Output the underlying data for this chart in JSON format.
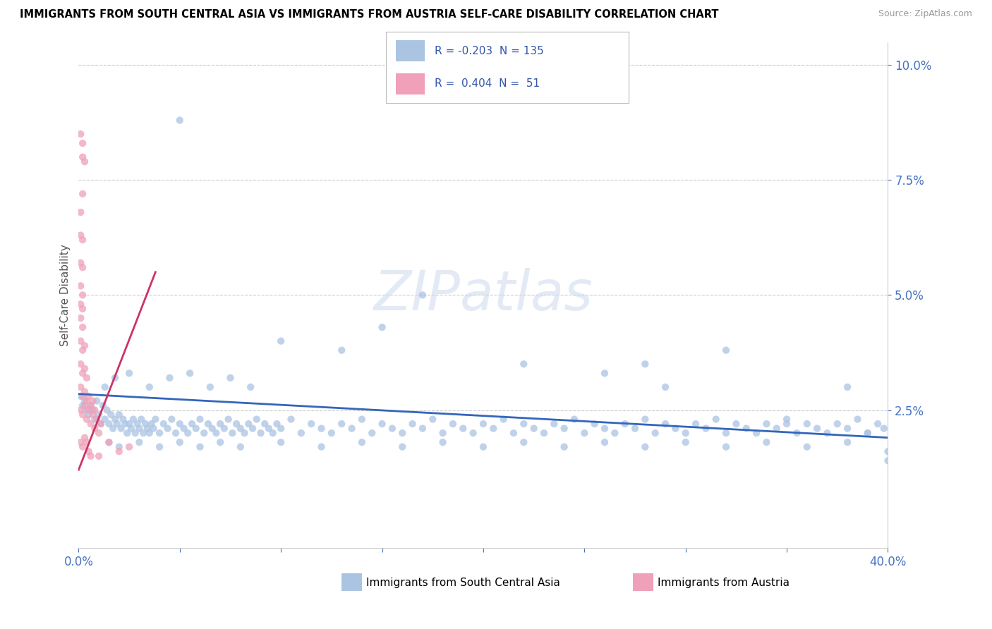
{
  "title": "IMMIGRANTS FROM SOUTH CENTRAL ASIA VS IMMIGRANTS FROM AUSTRIA SELF-CARE DISABILITY CORRELATION CHART",
  "source": "Source: ZipAtlas.com",
  "ylabel": "Self-Care Disability",
  "legend1_r": "-0.203",
  "legend1_n": "135",
  "legend2_r": "0.404",
  "legend2_n": "51",
  "color_blue": "#aac4e2",
  "color_pink": "#f0a0b8",
  "line_blue": "#3366bb",
  "line_pink": "#cc3366",
  "watermark": "ZIPatlas",
  "xlim": [
    0.0,
    0.4
  ],
  "ylim": [
    -0.005,
    0.105
  ],
  "blue_line": [
    [
      0.0,
      0.0285
    ],
    [
      0.4,
      0.019
    ]
  ],
  "pink_line": [
    [
      0.0,
      0.021
    ],
    [
      0.038,
      0.055
    ]
  ],
  "pink_line_ext": [
    [
      0.0,
      0.012
    ],
    [
      0.038,
      0.055
    ]
  ],
  "blue_dots": [
    [
      0.001,
      0.028
    ],
    [
      0.002,
      0.026
    ],
    [
      0.003,
      0.027
    ],
    [
      0.004,
      0.025
    ],
    [
      0.005,
      0.024
    ],
    [
      0.006,
      0.026
    ],
    [
      0.007,
      0.025
    ],
    [
      0.008,
      0.023
    ],
    [
      0.009,
      0.027
    ],
    [
      0.01,
      0.024
    ],
    [
      0.011,
      0.022
    ],
    [
      0.012,
      0.026
    ],
    [
      0.013,
      0.023
    ],
    [
      0.014,
      0.025
    ],
    [
      0.015,
      0.022
    ],
    [
      0.016,
      0.024
    ],
    [
      0.017,
      0.021
    ],
    [
      0.018,
      0.023
    ],
    [
      0.019,
      0.022
    ],
    [
      0.02,
      0.024
    ],
    [
      0.021,
      0.021
    ],
    [
      0.022,
      0.023
    ],
    [
      0.023,
      0.022
    ],
    [
      0.024,
      0.02
    ],
    [
      0.025,
      0.022
    ],
    [
      0.026,
      0.021
    ],
    [
      0.027,
      0.023
    ],
    [
      0.028,
      0.02
    ],
    [
      0.029,
      0.022
    ],
    [
      0.03,
      0.021
    ],
    [
      0.031,
      0.023
    ],
    [
      0.032,
      0.02
    ],
    [
      0.033,
      0.022
    ],
    [
      0.034,
      0.021
    ],
    [
      0.035,
      0.02
    ],
    [
      0.036,
      0.022
    ],
    [
      0.037,
      0.021
    ],
    [
      0.038,
      0.023
    ],
    [
      0.04,
      0.02
    ],
    [
      0.042,
      0.022
    ],
    [
      0.044,
      0.021
    ],
    [
      0.046,
      0.023
    ],
    [
      0.048,
      0.02
    ],
    [
      0.05,
      0.022
    ],
    [
      0.052,
      0.021
    ],
    [
      0.054,
      0.02
    ],
    [
      0.056,
      0.022
    ],
    [
      0.058,
      0.021
    ],
    [
      0.06,
      0.023
    ],
    [
      0.062,
      0.02
    ],
    [
      0.064,
      0.022
    ],
    [
      0.066,
      0.021
    ],
    [
      0.068,
      0.02
    ],
    [
      0.07,
      0.022
    ],
    [
      0.072,
      0.021
    ],
    [
      0.074,
      0.023
    ],
    [
      0.076,
      0.02
    ],
    [
      0.078,
      0.022
    ],
    [
      0.08,
      0.021
    ],
    [
      0.082,
      0.02
    ],
    [
      0.084,
      0.022
    ],
    [
      0.086,
      0.021
    ],
    [
      0.088,
      0.023
    ],
    [
      0.09,
      0.02
    ],
    [
      0.092,
      0.022
    ],
    [
      0.094,
      0.021
    ],
    [
      0.096,
      0.02
    ],
    [
      0.098,
      0.022
    ],
    [
      0.1,
      0.021
    ],
    [
      0.105,
      0.023
    ],
    [
      0.11,
      0.02
    ],
    [
      0.115,
      0.022
    ],
    [
      0.12,
      0.021
    ],
    [
      0.125,
      0.02
    ],
    [
      0.13,
      0.022
    ],
    [
      0.135,
      0.021
    ],
    [
      0.14,
      0.023
    ],
    [
      0.145,
      0.02
    ],
    [
      0.15,
      0.022
    ],
    [
      0.155,
      0.021
    ],
    [
      0.16,
      0.02
    ],
    [
      0.165,
      0.022
    ],
    [
      0.17,
      0.021
    ],
    [
      0.175,
      0.023
    ],
    [
      0.18,
      0.02
    ],
    [
      0.185,
      0.022
    ],
    [
      0.19,
      0.021
    ],
    [
      0.195,
      0.02
    ],
    [
      0.2,
      0.022
    ],
    [
      0.205,
      0.021
    ],
    [
      0.21,
      0.023
    ],
    [
      0.215,
      0.02
    ],
    [
      0.22,
      0.022
    ],
    [
      0.225,
      0.021
    ],
    [
      0.23,
      0.02
    ],
    [
      0.235,
      0.022
    ],
    [
      0.24,
      0.021
    ],
    [
      0.245,
      0.023
    ],
    [
      0.25,
      0.02
    ],
    [
      0.255,
      0.022
    ],
    [
      0.26,
      0.021
    ],
    [
      0.265,
      0.02
    ],
    [
      0.27,
      0.022
    ],
    [
      0.275,
      0.021
    ],
    [
      0.28,
      0.023
    ],
    [
      0.285,
      0.02
    ],
    [
      0.29,
      0.022
    ],
    [
      0.295,
      0.021
    ],
    [
      0.3,
      0.02
    ],
    [
      0.305,
      0.022
    ],
    [
      0.31,
      0.021
    ],
    [
      0.315,
      0.023
    ],
    [
      0.32,
      0.02
    ],
    [
      0.325,
      0.022
    ],
    [
      0.33,
      0.021
    ],
    [
      0.335,
      0.02
    ],
    [
      0.34,
      0.022
    ],
    [
      0.345,
      0.021
    ],
    [
      0.35,
      0.023
    ],
    [
      0.355,
      0.02
    ],
    [
      0.36,
      0.022
    ],
    [
      0.365,
      0.021
    ],
    [
      0.37,
      0.02
    ],
    [
      0.375,
      0.022
    ],
    [
      0.38,
      0.021
    ],
    [
      0.385,
      0.023
    ],
    [
      0.39,
      0.02
    ],
    [
      0.395,
      0.022
    ],
    [
      0.398,
      0.021
    ],
    [
      0.013,
      0.03
    ],
    [
      0.018,
      0.032
    ],
    [
      0.025,
      0.033
    ],
    [
      0.035,
      0.03
    ],
    [
      0.045,
      0.032
    ],
    [
      0.055,
      0.033
    ],
    [
      0.065,
      0.03
    ],
    [
      0.075,
      0.032
    ],
    [
      0.085,
      0.03
    ],
    [
      0.015,
      0.018
    ],
    [
      0.02,
      0.017
    ],
    [
      0.03,
      0.018
    ],
    [
      0.04,
      0.017
    ],
    [
      0.05,
      0.018
    ],
    [
      0.06,
      0.017
    ],
    [
      0.07,
      0.018
    ],
    [
      0.08,
      0.017
    ],
    [
      0.1,
      0.018
    ],
    [
      0.12,
      0.017
    ],
    [
      0.14,
      0.018
    ],
    [
      0.16,
      0.017
    ],
    [
      0.18,
      0.018
    ],
    [
      0.2,
      0.017
    ],
    [
      0.22,
      0.018
    ],
    [
      0.24,
      0.017
    ],
    [
      0.26,
      0.018
    ],
    [
      0.28,
      0.017
    ],
    [
      0.3,
      0.018
    ],
    [
      0.32,
      0.017
    ],
    [
      0.34,
      0.018
    ],
    [
      0.36,
      0.017
    ],
    [
      0.38,
      0.018
    ],
    [
      0.4,
      0.016
    ],
    [
      0.17,
      0.05
    ],
    [
      0.05,
      0.088
    ],
    [
      0.15,
      0.043
    ],
    [
      0.28,
      0.035
    ],
    [
      0.1,
      0.04
    ],
    [
      0.22,
      0.035
    ],
    [
      0.26,
      0.033
    ],
    [
      0.13,
      0.038
    ],
    [
      0.32,
      0.038
    ],
    [
      0.29,
      0.03
    ],
    [
      0.38,
      0.03
    ],
    [
      0.35,
      0.022
    ],
    [
      0.39,
      0.02
    ],
    [
      0.4,
      0.014
    ]
  ],
  "pink_dots": [
    [
      0.001,
      0.025
    ],
    [
      0.002,
      0.024
    ],
    [
      0.003,
      0.026
    ],
    [
      0.004,
      0.023
    ],
    [
      0.005,
      0.025
    ],
    [
      0.006,
      0.022
    ],
    [
      0.007,
      0.024
    ],
    [
      0.008,
      0.021
    ],
    [
      0.009,
      0.023
    ],
    [
      0.01,
      0.02
    ],
    [
      0.011,
      0.022
    ],
    [
      0.001,
      0.03
    ],
    [
      0.002,
      0.028
    ],
    [
      0.003,
      0.029
    ],
    [
      0.004,
      0.027
    ],
    [
      0.005,
      0.028
    ],
    [
      0.006,
      0.026
    ],
    [
      0.007,
      0.027
    ],
    [
      0.008,
      0.025
    ],
    [
      0.001,
      0.035
    ],
    [
      0.002,
      0.033
    ],
    [
      0.003,
      0.034
    ],
    [
      0.004,
      0.032
    ],
    [
      0.001,
      0.04
    ],
    [
      0.002,
      0.038
    ],
    [
      0.003,
      0.039
    ],
    [
      0.001,
      0.045
    ],
    [
      0.002,
      0.043
    ],
    [
      0.001,
      0.048
    ],
    [
      0.002,
      0.047
    ],
    [
      0.001,
      0.052
    ],
    [
      0.002,
      0.05
    ],
    [
      0.001,
      0.057
    ],
    [
      0.002,
      0.056
    ],
    [
      0.001,
      0.063
    ],
    [
      0.002,
      0.062
    ],
    [
      0.001,
      0.068
    ],
    [
      0.002,
      0.072
    ],
    [
      0.002,
      0.08
    ],
    [
      0.003,
      0.079
    ],
    [
      0.001,
      0.085
    ],
    [
      0.002,
      0.083
    ],
    [
      0.001,
      0.018
    ],
    [
      0.002,
      0.017
    ],
    [
      0.003,
      0.019
    ],
    [
      0.004,
      0.018
    ],
    [
      0.005,
      0.016
    ],
    [
      0.006,
      0.015
    ],
    [
      0.01,
      0.015
    ],
    [
      0.015,
      0.018
    ],
    [
      0.02,
      0.016
    ],
    [
      0.025,
      0.017
    ]
  ]
}
